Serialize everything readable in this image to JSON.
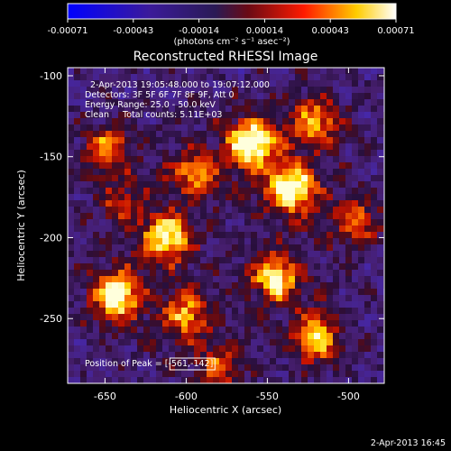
{
  "chart_data": {
    "type": "heatmap",
    "title": "Reconstructed RHESSI Image",
    "xlabel": "Heliocentric X (arcsec)",
    "ylabel": "Heliocentric Y (arcsec)",
    "xlim": [
      -673,
      -478
    ],
    "ylim": [
      -290,
      -95
    ],
    "x_ticks": [
      -650,
      -600,
      -550,
      -500
    ],
    "y_ticks": [
      -100,
      -150,
      -200,
      -250
    ],
    "colorbar": {
      "range": [
        -0.00071,
        0.00071
      ],
      "tick_labels": [
        "-0.00071",
        "-0.00043",
        "-0.00014",
        "0.00014",
        "0.00043",
        "0.00071"
      ],
      "unit_label": "(photons cm⁻² s⁻¹ asec⁻²)"
    },
    "annotations": [
      "2-Apr-2013 19:05:48.000 to 19:07:12.000",
      "Detectors: 3F 5F 6F 7F 8F 9F, Att 0",
      "Energy Range: 25.0 - 50.0 keV",
      "Clean     Total counts: 5.11E+03"
    ],
    "peak_label": "Position of Peak = [-561,-142]",
    "footer_date": "2-Apr-2013 16:45",
    "colors": {
      "background": "#000000",
      "negative_low": "#0000ff",
      "midpoint": "#2a1a55",
      "positive": "#ff0000",
      "high": "#ffff00",
      "max": "#ffffff"
    },
    "bright_sources": [
      {
        "x": -643,
        "y": -236,
        "strength": 0.9
      },
      {
        "x": -648,
        "y": -145,
        "strength": 0.55
      },
      {
        "x": -640,
        "y": -180,
        "strength": 0.35
      },
      {
        "x": -612,
        "y": -200,
        "strength": 0.8
      },
      {
        "x": -600,
        "y": -248,
        "strength": 0.6
      },
      {
        "x": -595,
        "y": -160,
        "strength": 0.55
      },
      {
        "x": -560,
        "y": -142,
        "strength": 1.0
      },
      {
        "x": -535,
        "y": -170,
        "strength": 0.95
      },
      {
        "x": -545,
        "y": -225,
        "strength": 0.8
      },
      {
        "x": -520,
        "y": -262,
        "strength": 0.7
      },
      {
        "x": -495,
        "y": -190,
        "strength": 0.5
      },
      {
        "x": -520,
        "y": -128,
        "strength": 0.6
      },
      {
        "x": -580,
        "y": -280,
        "strength": 0.45
      }
    ]
  }
}
